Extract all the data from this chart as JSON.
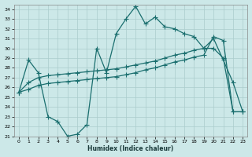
{
  "xlabel": "Humidex (Indice chaleur)",
  "bg_color": "#cce8e8",
  "line_color": "#1a6e6e",
  "grid_color": "#aacccc",
  "xlim": [
    -0.5,
    23.5
  ],
  "ylim": [
    21,
    34.5
  ],
  "xticks": [
    0,
    1,
    2,
    3,
    4,
    5,
    6,
    7,
    8,
    9,
    10,
    11,
    12,
    13,
    14,
    15,
    16,
    17,
    18,
    19,
    20,
    21,
    22,
    23
  ],
  "yticks": [
    21,
    22,
    23,
    24,
    25,
    26,
    27,
    28,
    29,
    30,
    31,
    32,
    33,
    34
  ],
  "curve1_x": [
    0,
    1,
    2,
    3,
    4,
    5,
    6,
    7,
    8,
    9,
    10,
    11,
    12,
    13,
    14,
    15,
    16,
    17,
    18,
    19,
    20,
    21,
    22,
    23
  ],
  "curve1_y": [
    25.5,
    28.8,
    27.5,
    23.0,
    22.5,
    21.0,
    21.2,
    22.2,
    30.0,
    27.5,
    31.5,
    33.0,
    34.3,
    32.5,
    33.2,
    32.2,
    32.0,
    31.5,
    31.2,
    30.0,
    31.0,
    28.8,
    26.5,
    23.5
  ],
  "curve2_x": [
    0,
    1,
    2,
    3,
    4,
    5,
    6,
    7,
    8,
    9,
    10,
    11,
    12,
    13,
    14,
    15,
    16,
    17,
    18,
    19,
    20,
    21,
    22,
    23
  ],
  "curve2_y": [
    25.5,
    26.5,
    27.0,
    27.2,
    27.3,
    27.4,
    27.5,
    27.6,
    27.7,
    27.8,
    27.9,
    28.1,
    28.3,
    28.5,
    28.7,
    29.0,
    29.3,
    29.5,
    29.8,
    30.0,
    30.0,
    29.0,
    23.5,
    23.5
  ],
  "curve3_x": [
    0,
    1,
    2,
    3,
    4,
    5,
    6,
    7,
    8,
    9,
    10,
    11,
    12,
    13,
    14,
    15,
    16,
    17,
    18,
    19,
    20,
    21,
    22,
    23
  ],
  "curve3_y": [
    25.5,
    25.8,
    26.2,
    26.4,
    26.5,
    26.6,
    26.7,
    26.8,
    26.9,
    27.0,
    27.1,
    27.3,
    27.5,
    27.8,
    28.0,
    28.3,
    28.6,
    28.8,
    29.1,
    29.3,
    31.2,
    30.8,
    23.5,
    23.5
  ]
}
